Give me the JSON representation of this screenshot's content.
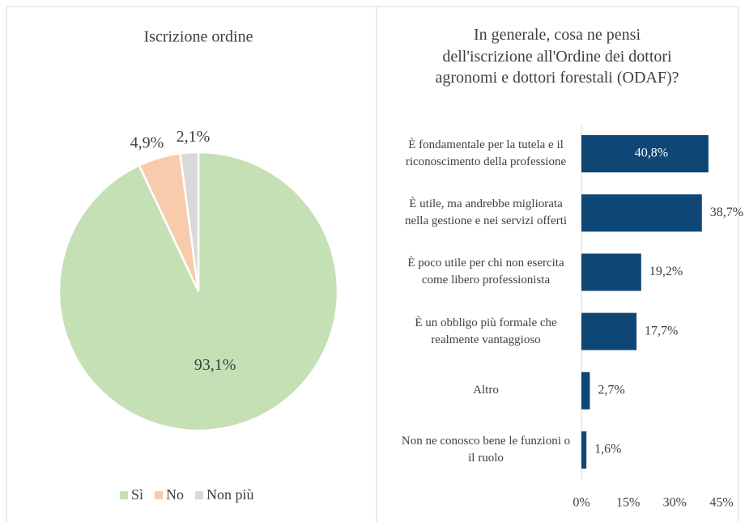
{
  "chart_data": [
    {
      "type": "pie",
      "title": "Iscrizione ordine",
      "categories": [
        "Sì",
        "No",
        "Non più"
      ],
      "values": [
        93.1,
        4.9,
        2.1
      ],
      "value_labels": [
        "93,1%",
        "4,9%",
        "2,1%"
      ],
      "colors": [
        "#c5e0b4",
        "#f8cbad",
        "#d9d9d9"
      ],
      "legend": "bottom"
    },
    {
      "type": "barh",
      "title": "In generale, cosa ne pensi dell'iscrizione all'Ordine dei dottori agronomi e dottori forestali (ODAF)?",
      "categories": [
        "È fondamentale per la tutela e il riconoscimento della professione",
        "È utile, ma andrebbe migliorata nella gestione e nei servizi offerti",
        "È poco utile per chi non esercita come libero professionista",
        "È un obbligo più formale che realmente vantaggioso",
        "Altro",
        "Non ne conosco bene le funzioni o il ruolo"
      ],
      "values": [
        40.8,
        38.7,
        19.2,
        17.7,
        2.7,
        1.6
      ],
      "value_labels": [
        "40,8%",
        "38,7%",
        "19,2%",
        "17,7%",
        "2,7%",
        "1,6%"
      ],
      "color": "#0e4775",
      "xlim": [
        0,
        45
      ],
      "xticks": [
        {
          "value": 0,
          "label": "0%"
        },
        {
          "value": 15,
          "label": "15%"
        },
        {
          "value": 30,
          "label": "30%"
        },
        {
          "value": 45,
          "label": "45%"
        }
      ]
    }
  ]
}
